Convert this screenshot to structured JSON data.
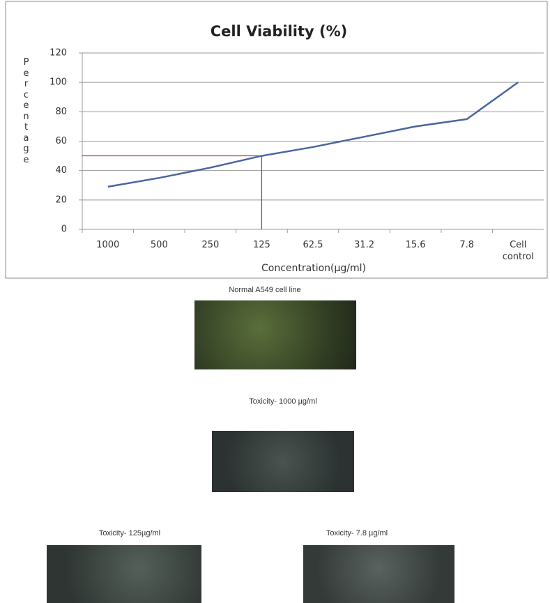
{
  "chart_data": {
    "type": "line",
    "title": "Cell Viability (%)",
    "x_label": "Concentration(μg/ml)",
    "y_label": "Percentage",
    "categories": [
      "1000",
      "500",
      "250",
      "125",
      "62.5",
      "31.2",
      "15.6",
      "7.8",
      "Cell control"
    ],
    "values": [
      29,
      35,
      42,
      50,
      56,
      63,
      70,
      75,
      100
    ],
    "color": "#4a65a0",
    "ylim": [
      0,
      120
    ],
    "yticks": [
      0,
      20,
      40,
      60,
      80,
      100,
      120
    ],
    "grid": true,
    "reference_line": {
      "y": 50,
      "x": "125",
      "color": "#b03030"
    }
  },
  "figures": [
    {
      "caption": "Normal A549 cell line"
    },
    {
      "caption": "Toxicity- 1000 µg/ml"
    },
    {
      "caption": "Toxicity- 125µg/ml"
    },
    {
      "caption": "Toxicity- 7.8 µg/ml"
    }
  ]
}
